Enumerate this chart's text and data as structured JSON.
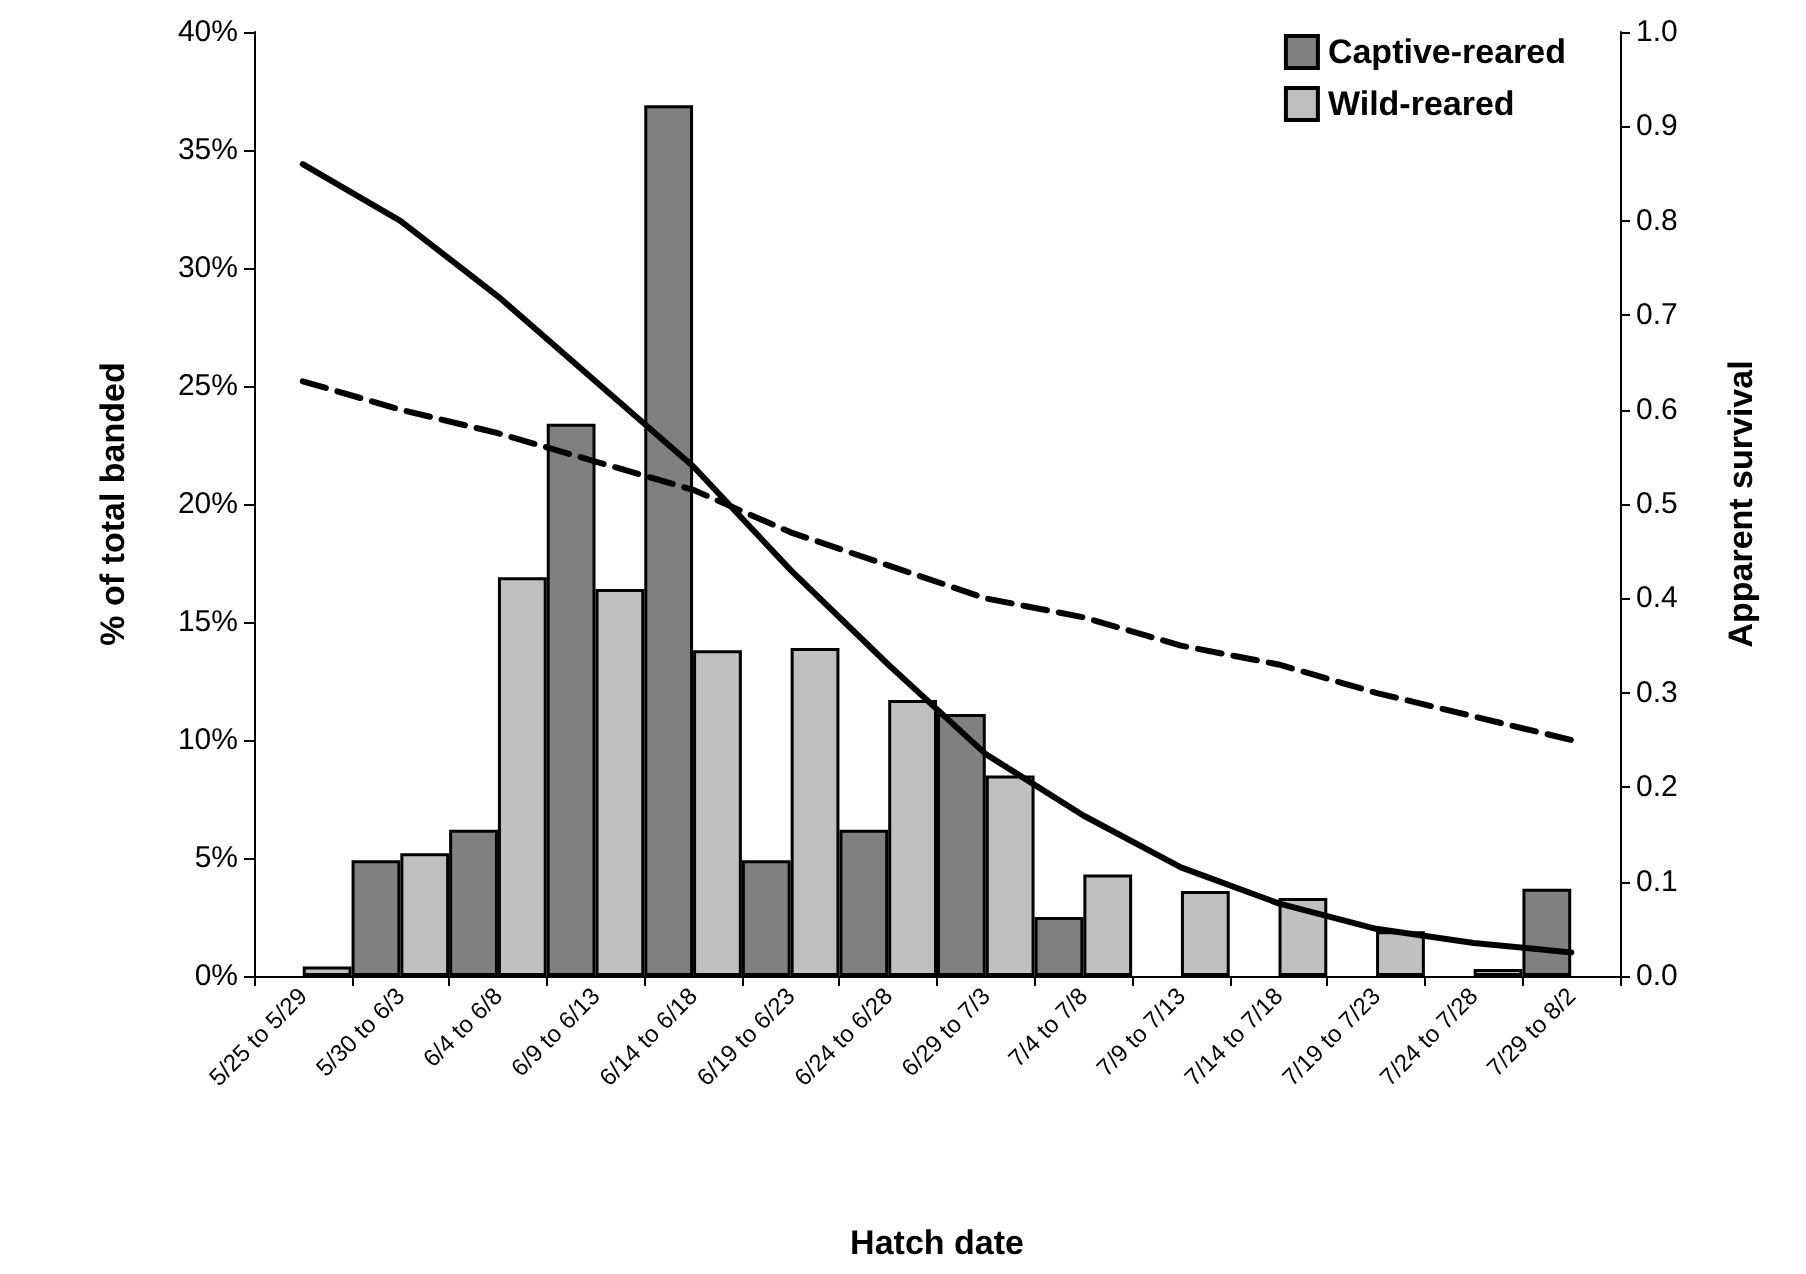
{
  "chart_data": {
    "type": "bar",
    "xlabel": "Hatch date",
    "ylabel": "% of total banded",
    "y2label": "Apparent survival",
    "categories": [
      "5/25 to 5/29",
      "5/30 to 6/3",
      "6/4 to 6/8",
      "6/9 to 6/13",
      "6/14 to 6/18",
      "6/19 to 6/23",
      "6/24 to 6/28",
      "6/29 to 7/3",
      "7/4 to 7/8",
      "7/9 to 7/13",
      "7/14 to 7/18",
      "7/19 to 7/23",
      "7/24 to 7/28",
      "7/29 to 8/2"
    ],
    "series": [
      {
        "name": "Captive-reared",
        "color": "#808080",
        "values": [
          0,
          4.9,
          6.2,
          23.4,
          36.9,
          4.9,
          6.2,
          11.1,
          2.5,
          0,
          0,
          0,
          0,
          3.7
        ]
      },
      {
        "name": "Wild-reared",
        "color": "#c0c0c0",
        "values": [
          0.4,
          5.2,
          16.9,
          16.4,
          13.8,
          13.9,
          11.7,
          8.5,
          4.3,
          3.6,
          3.3,
          1.9,
          0.3,
          0
        ]
      },
      {
        "type": "line",
        "axis": "y2",
        "color": "#000000",
        "line_style": "solid",
        "values": [
          0.86,
          0.8,
          0.72,
          0.63,
          0.54,
          0.43,
          0.33,
          0.235,
          0.17,
          0.115,
          0.077,
          0.05,
          0.035,
          0.025
        ]
      },
      {
        "type": "line",
        "axis": "y2",
        "color": "#000000",
        "line_style": "dashed",
        "values": [
          0.63,
          0.6,
          0.575,
          0.545,
          0.515,
          0.47,
          0.435,
          0.4,
          0.38,
          0.35,
          0.33,
          0.3,
          0.275,
          0.25
        ]
      }
    ],
    "ylim": [
      0,
      40
    ],
    "yticks": [
      {
        "value": 0,
        "label": "0%"
      },
      {
        "value": 5,
        "label": "5%"
      },
      {
        "value": 10,
        "label": "10%"
      },
      {
        "value": 15,
        "label": "15%"
      },
      {
        "value": 20,
        "label": "20%"
      },
      {
        "value": 25,
        "label": "25%"
      },
      {
        "value": 30,
        "label": "30%"
      },
      {
        "value": 35,
        "label": "35%"
      },
      {
        "value": 40,
        "label": "40%"
      }
    ],
    "y2lim": [
      0,
      1
    ],
    "y2ticks": [
      {
        "value": 0,
        "label": "0.0"
      },
      {
        "value": 0.1,
        "label": "0.1"
      },
      {
        "value": 0.2,
        "label": "0.2"
      },
      {
        "value": 0.3,
        "label": "0.3"
      },
      {
        "value": 0.4,
        "label": "0.4"
      },
      {
        "value": 0.5,
        "label": "0.5"
      },
      {
        "value": 0.6,
        "label": "0.6"
      },
      {
        "value": 0.7,
        "label": "0.7"
      },
      {
        "value": 0.8,
        "label": "0.8"
      },
      {
        "value": 0.9,
        "label": "0.9"
      },
      {
        "value": 1,
        "label": "1.0"
      }
    ],
    "grid": false,
    "legend": "top right",
    "marker": "none"
  }
}
